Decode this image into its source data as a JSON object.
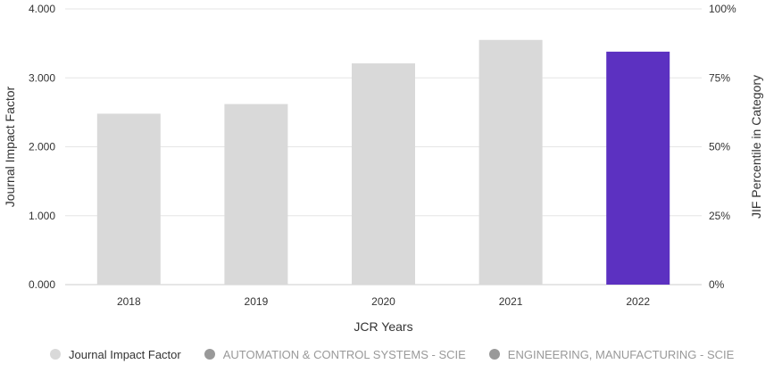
{
  "chart_data": {
    "type": "bar",
    "categories": [
      "2018",
      "2019",
      "2020",
      "2021",
      "2022"
    ],
    "series": [
      {
        "name": "Journal Impact Factor",
        "values": [
          2.48,
          2.62,
          3.21,
          3.55,
          3.38
        ]
      }
    ],
    "bar_colors": [
      "#d9d9d9",
      "#d9d9d9",
      "#d9d9d9",
      "#d9d9d9",
      "#5c31c1"
    ],
    "xlabel": "JCR Years",
    "ylabel": "Journal Impact Factor",
    "ylabel_right": "JIF Percentile in Category",
    "ylim": [
      0,
      4
    ],
    "ylim_right": [
      0,
      100
    ],
    "yticks": [
      "0.000",
      "1.000",
      "2.000",
      "3.000",
      "4.000"
    ],
    "yticks_right": [
      "0%",
      "25%",
      "50%",
      "75%",
      "100%"
    ],
    "grid": true
  },
  "legend": [
    {
      "label": "Journal Impact Factor",
      "color": "#d9d9d9",
      "text_color": "#333333"
    },
    {
      "label": "AUTOMATION & CONTROL SYSTEMS - SCIE",
      "color": "#999999",
      "text_color": "#999999"
    },
    {
      "label": "ENGINEERING, MANUFACTURING - SCIE",
      "color": "#999999",
      "text_color": "#999999"
    }
  ]
}
